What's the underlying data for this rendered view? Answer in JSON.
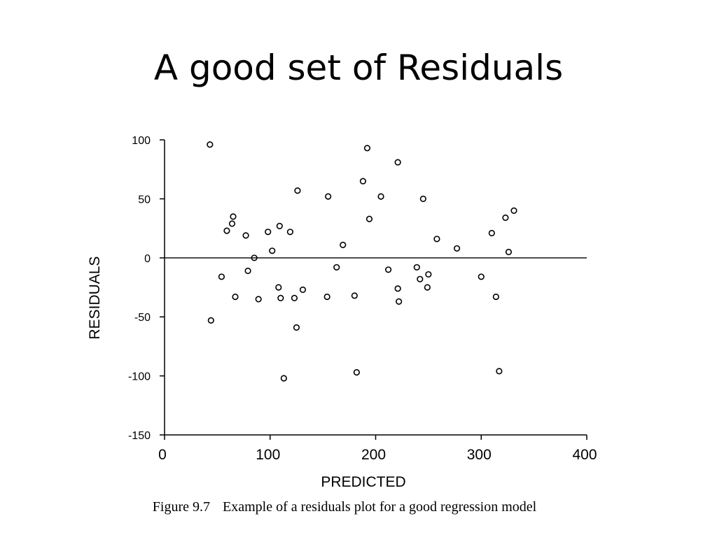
{
  "slide": {
    "title": "A good set of Residuals",
    "caption_number": "Figure 9.7",
    "caption_text": "Example of a residuals plot for a good regression model"
  },
  "chart_data": {
    "type": "scatter",
    "xlabel": "PREDICTED",
    "ylabel": "RESIDUALS",
    "xlim": [
      0,
      400
    ],
    "ylim": [
      -150,
      100
    ],
    "x_ticks": [
      0,
      100,
      200,
      300,
      400
    ],
    "y_ticks": [
      100,
      50,
      0,
      -50,
      -100,
      -150
    ],
    "grid": false,
    "reference_line_y": 0,
    "marker": "open-circle",
    "color": "#000000",
    "points": [
      [
        43,
        96
      ],
      [
        44,
        -53
      ],
      [
        54,
        -16
      ],
      [
        59,
        23
      ],
      [
        64,
        29
      ],
      [
        65,
        35
      ],
      [
        67,
        -33
      ],
      [
        77,
        19
      ],
      [
        79,
        -11
      ],
      [
        85,
        0
      ],
      [
        89,
        -35
      ],
      [
        98,
        22
      ],
      [
        102,
        6
      ],
      [
        108,
        -25
      ],
      [
        109,
        27
      ],
      [
        110,
        -34
      ],
      [
        113,
        -102
      ],
      [
        119,
        22
      ],
      [
        123,
        -34
      ],
      [
        125,
        -59
      ],
      [
        126,
        57
      ],
      [
        131,
        -27
      ],
      [
        154,
        -33
      ],
      [
        155,
        52
      ],
      [
        163,
        -8
      ],
      [
        169,
        11
      ],
      [
        180,
        -32
      ],
      [
        182,
        -97
      ],
      [
        188,
        65
      ],
      [
        192,
        93
      ],
      [
        194,
        33
      ],
      [
        205,
        52
      ],
      [
        212,
        -10
      ],
      [
        221,
        81
      ],
      [
        221,
        -26
      ],
      [
        222,
        -37
      ],
      [
        239,
        -8
      ],
      [
        242,
        -18
      ],
      [
        245,
        50
      ],
      [
        249,
        -25
      ],
      [
        250,
        -14
      ],
      [
        258,
        16
      ],
      [
        277,
        8
      ],
      [
        300,
        -16
      ],
      [
        310,
        21
      ],
      [
        314,
        -33
      ],
      [
        317,
        -96
      ],
      [
        323,
        34
      ],
      [
        326,
        5
      ],
      [
        331,
        40
      ]
    ]
  }
}
